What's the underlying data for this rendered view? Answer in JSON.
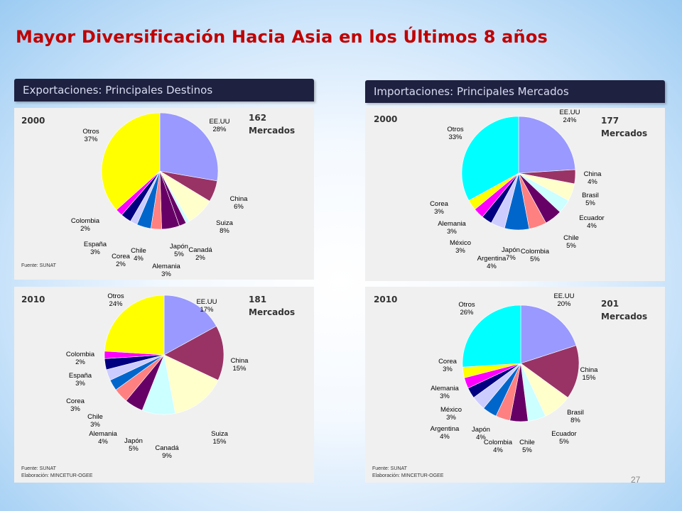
{
  "title": "Mayor Diversificación Hacia Asia en los Últimos 8 años",
  "sections": {
    "exports": "Exportaciones: Principales Destinos",
    "imports": "Importaciones: Principales Mercados"
  },
  "page_number": "27",
  "chart_data": [
    {
      "type": "pie",
      "group": "exports",
      "year": "2000",
      "markets_count": "162",
      "markets_label": "Mercados",
      "slices": [
        {
          "name": "EE.UU",
          "value": 28,
          "label": "28%",
          "color": "#9999ff"
        },
        {
          "name": "China",
          "value": 6,
          "label": "6%",
          "color": "#993366"
        },
        {
          "name": "Suiza",
          "value": 8,
          "label": "8%",
          "color": "#ffffcc"
        },
        {
          "name": "",
          "value": 1,
          "label": "",
          "color": "#ccffff"
        },
        {
          "name": "Canadá",
          "value": 2,
          "label": "2%",
          "color": "#660066"
        },
        {
          "name": "Japón",
          "value": 5,
          "label": "5%",
          "color": "#660066"
        },
        {
          "name": "Alemania",
          "value": 3,
          "label": "3%",
          "color": "#ff8080"
        },
        {
          "name": "Chile",
          "value": 4,
          "label": "4%",
          "color": "#0066cc"
        },
        {
          "name": "Corea",
          "value": 2,
          "label": "2%",
          "color": "#ccccff"
        },
        {
          "name": "España",
          "value": 3,
          "label": "3%",
          "color": "#000080"
        },
        {
          "name": "Colombia",
          "value": 2,
          "label": "2%",
          "color": "#ff00ff"
        },
        {
          "name": "Otros",
          "value": 37,
          "label": "37%",
          "color": "#ffff00"
        }
      ],
      "source": "Fuente: SUNAT",
      "elaboration": ""
    },
    {
      "type": "pie",
      "group": "imports",
      "year": "2000",
      "markets_count": "177",
      "markets_label": "Mercados",
      "slices": [
        {
          "name": "EE.UU",
          "value": 24,
          "label": "24%",
          "color": "#9999ff"
        },
        {
          "name": "China",
          "value": 4,
          "label": "4%",
          "color": "#993366"
        },
        {
          "name": "Brasil",
          "value": 5,
          "label": "5%",
          "color": "#ffffcc"
        },
        {
          "name": "Ecuador",
          "value": 4,
          "label": "4%",
          "color": "#ccffff"
        },
        {
          "name": "Chile",
          "value": 5,
          "label": "5%",
          "color": "#660066"
        },
        {
          "name": "Colombia",
          "value": 5,
          "label": "5%",
          "color": "#ff8080"
        },
        {
          "name": "Japón",
          "value": 7,
          "label": "7%",
          "color": "#0066cc"
        },
        {
          "name": "Argentina",
          "value": 4,
          "label": "4%",
          "color": "#ccccff"
        },
        {
          "name": "México",
          "value": 3,
          "label": "3%",
          "color": "#000080"
        },
        {
          "name": "Alemania",
          "value": 3,
          "label": "3%",
          "color": "#ff00ff"
        },
        {
          "name": "Corea",
          "value": 3,
          "label": "3%",
          "color": "#ffff00"
        },
        {
          "name": "Otros",
          "value": 33,
          "label": "33%",
          "color": "#00ffff"
        }
      ],
      "source": "",
      "elaboration": ""
    },
    {
      "type": "pie",
      "group": "exports",
      "year": "2010",
      "markets_count": "181",
      "markets_label": "Mercados",
      "slices": [
        {
          "name": "EE.UU",
          "value": 17,
          "label": "17%",
          "color": "#9999ff"
        },
        {
          "name": "China",
          "value": 15,
          "label": "15%",
          "color": "#993366"
        },
        {
          "name": "Suiza",
          "value": 15,
          "label": "15%",
          "color": "#ffffcc"
        },
        {
          "name": "Canadá",
          "value": 9,
          "label": "9%",
          "color": "#ccffff"
        },
        {
          "name": "Japón",
          "value": 5,
          "label": "5%",
          "color": "#660066"
        },
        {
          "name": "Alemania",
          "value": 4,
          "label": "4%",
          "color": "#ff8080"
        },
        {
          "name": "Chile",
          "value": 3,
          "label": "3%",
          "color": "#0066cc"
        },
        {
          "name": "Corea",
          "value": 3,
          "label": "3%",
          "color": "#ccccff"
        },
        {
          "name": "España",
          "value": 3,
          "label": "3%",
          "color": "#000080"
        },
        {
          "name": "Colombia",
          "value": 2,
          "label": "2%",
          "color": "#ff00ff"
        },
        {
          "name": "Otros",
          "value": 24,
          "label": "24%",
          "color": "#ffff00"
        }
      ],
      "source": "Fuente: SUNAT",
      "elaboration": "Elaboración: MINCETUR-OGEE"
    },
    {
      "type": "pie",
      "group": "imports",
      "year": "2010",
      "markets_count": "201",
      "markets_label": "Mercados",
      "slices": [
        {
          "name": "EE.UU",
          "value": 20,
          "label": "20%",
          "color": "#9999ff"
        },
        {
          "name": "China",
          "value": 15,
          "label": "15%",
          "color": "#993366"
        },
        {
          "name": "Brasil",
          "value": 8,
          "label": "8%",
          "color": "#ffffcc"
        },
        {
          "name": "Ecuador",
          "value": 5,
          "label": "5%",
          "color": "#ccffff"
        },
        {
          "name": "Chile",
          "value": 5,
          "label": "5%",
          "color": "#660066"
        },
        {
          "name": "Colombia",
          "value": 4,
          "label": "4%",
          "color": "#ff8080"
        },
        {
          "name": "Japón",
          "value": 4,
          "label": "4%",
          "color": "#0066cc"
        },
        {
          "name": "Argentina",
          "value": 4,
          "label": "4%",
          "color": "#ccccff"
        },
        {
          "name": "México",
          "value": 3,
          "label": "3%",
          "color": "#000080"
        },
        {
          "name": "Alemania",
          "value": 3,
          "label": "3%",
          "color": "#ff00ff"
        },
        {
          "name": "Corea",
          "value": 3,
          "label": "3%",
          "color": "#ffff00"
        },
        {
          "name": "Otros",
          "value": 26,
          "label": "26%",
          "color": "#00ffff"
        }
      ],
      "source": "Fuente: SUNAT",
      "elaboration": "Elaboración: MINCETUR-OGEE"
    }
  ]
}
